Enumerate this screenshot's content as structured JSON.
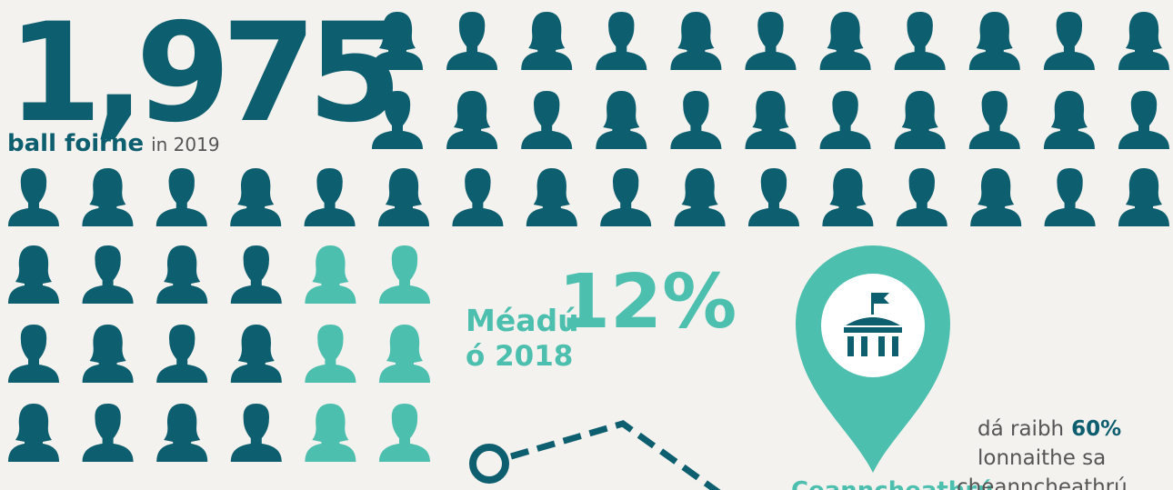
{
  "headline": {
    "number": "1,975",
    "label": "ball foirne",
    "suffix": "in 2019"
  },
  "increase": {
    "label": "Méadú",
    "value": "12%",
    "since": "ó 2018"
  },
  "hq": {
    "label": "Ceanncheathrú",
    "line1": "dá raibh",
    "percent": "60%",
    "line2": "lonnaithe sa",
    "line3": "cheanncheathrú"
  }
}
